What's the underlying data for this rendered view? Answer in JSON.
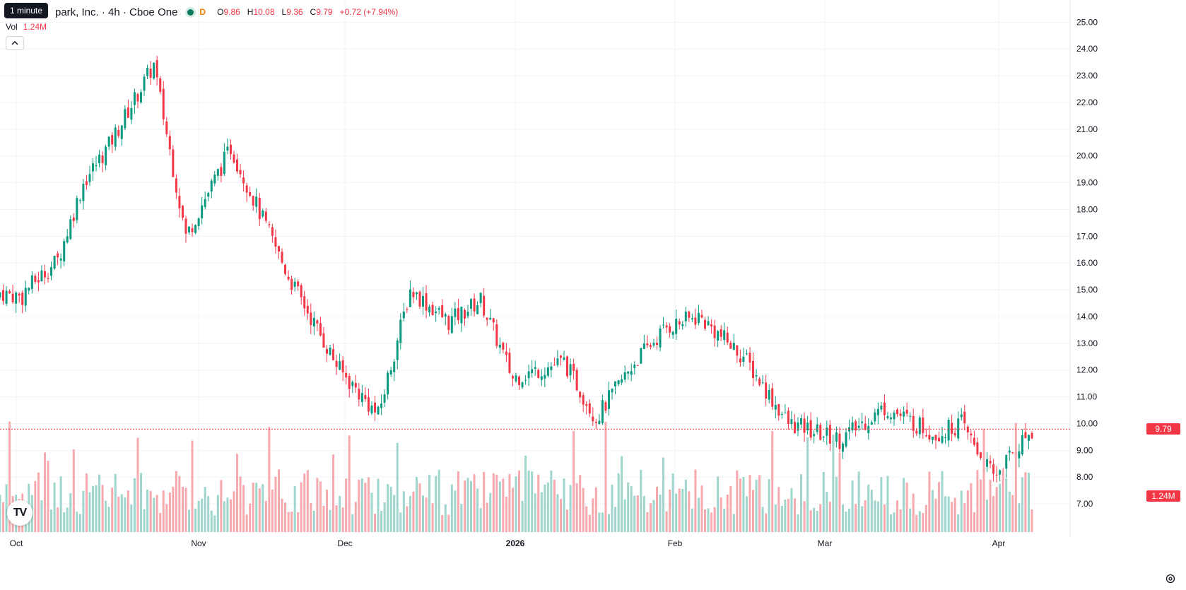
{
  "legend": {
    "title": "park, Inc. · 4h · Cboe One",
    "status_letter": "D",
    "open_label": "O",
    "open": "9.86",
    "high_label": "H",
    "high": "10.08",
    "low_label": "L",
    "low": "9.36",
    "close_label": "C",
    "close": "9.79",
    "change": "+0.72 (+7.94%)"
  },
  "volume": {
    "label": "Vol",
    "value": "1.24M"
  },
  "tooltip": "1 minute",
  "last_price_tag": "9.79",
  "volume_tag": "1.24M",
  "logo_text": "TV",
  "icons": {
    "collapse": "chevron-up-icon",
    "settings": "gear-icon",
    "status": "market-status-icon"
  },
  "colors": {
    "up": "#089981",
    "down": "#f23645",
    "up_vol": "#9ed6cd",
    "down_vol": "#f7a9ae",
    "grid": "#f0f3fa"
  },
  "chart_data": {
    "type": "candlestick",
    "price_axis": {
      "min": 6.5,
      "max": 25.3,
      "ticks": [
        "7.00",
        "8.00",
        "9.00",
        "10.00",
        "11.00",
        "12.00",
        "13.00",
        "14.00",
        "15.00",
        "16.00",
        "17.00",
        "18.00",
        "19.00",
        "20.00",
        "21.00",
        "22.00",
        "23.00",
        "24.00",
        "25.00"
      ]
    },
    "time_axis": [
      {
        "label": "Oct",
        "bold": false
      },
      {
        "label": "Nov",
        "bold": false
      },
      {
        "label": "Dec",
        "bold": false
      },
      {
        "label": "2026",
        "bold": true
      },
      {
        "label": "Feb",
        "bold": false
      },
      {
        "label": "Mar",
        "bold": false
      },
      {
        "label": "Apr",
        "bold": false
      }
    ],
    "last_price": 9.79,
    "segments": [
      [
        14.9,
        14.7,
        0
      ],
      [
        15.0,
        16.1,
        8
      ],
      [
        16.1,
        19.0,
        18
      ],
      [
        19.0,
        20.4,
        26
      ],
      [
        20.4,
        23.4,
        34
      ],
      [
        23.4,
        17.0,
        48
      ],
      [
        17.0,
        20.3,
        58
      ],
      [
        20.3,
        15.5,
        72
      ],
      [
        15.5,
        12.0,
        90
      ],
      [
        12.0,
        10.3,
        106
      ],
      [
        10.3,
        15.0,
        118
      ],
      [
        15.0,
        13.8,
        128
      ],
      [
        13.8,
        14.6,
        140
      ],
      [
        14.6,
        11.7,
        150
      ],
      [
        11.7,
        12.3,
        160
      ],
      [
        12.3,
        10.2,
        176
      ],
      [
        10.2,
        12.3,
        186
      ],
      [
        12.3,
        13.6,
        198
      ],
      [
        13.6,
        14.0,
        208
      ],
      [
        14.0,
        12.5,
        218
      ],
      [
        12.5,
        10.0,
        232
      ],
      [
        10.0,
        9.4,
        246
      ],
      [
        9.4,
        10.6,
        262
      ],
      [
        10.6,
        9.6,
        276
      ],
      [
        9.6,
        10.0,
        292
      ],
      [
        10.0,
        8.0,
        300
      ],
      [
        8.0,
        8.9,
        310
      ],
      [
        8.9,
        9.8,
        316
      ]
    ],
    "volume_max": 1.6
  }
}
